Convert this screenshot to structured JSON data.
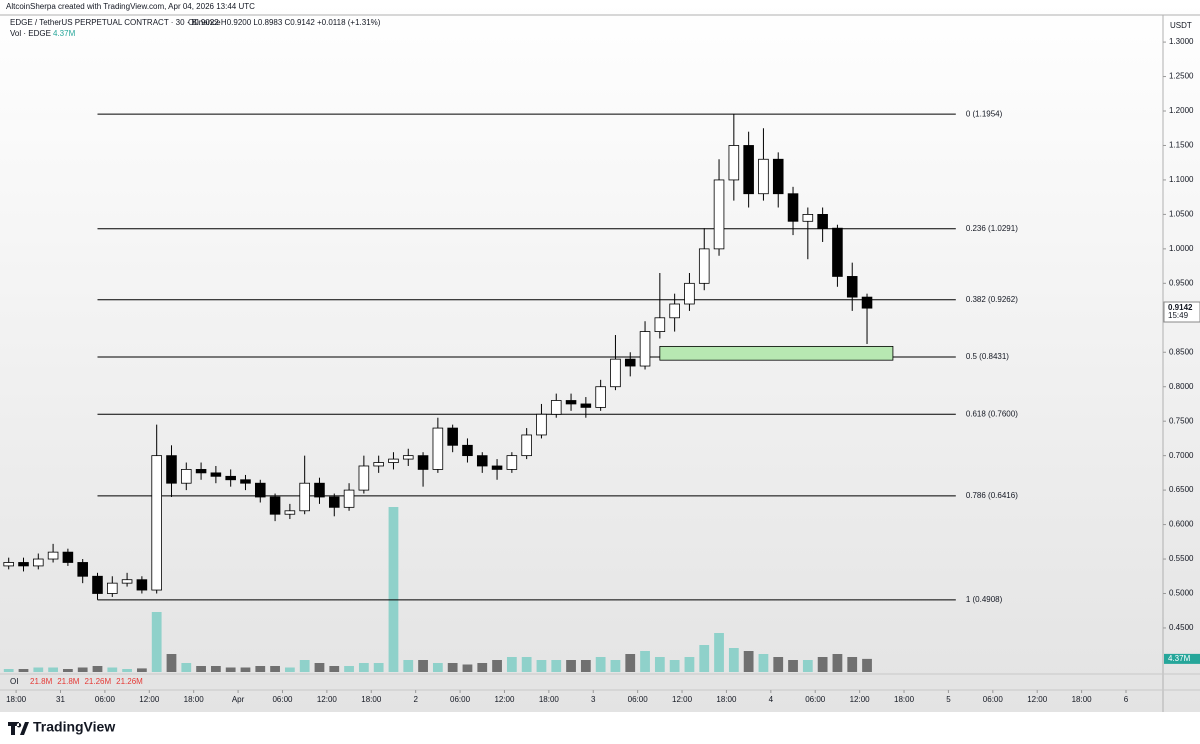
{
  "header": {
    "credit": "AltcoinSherpa created with TradingView.com, Apr 04, 2026 13:44 UTC",
    "brand": "TradingView"
  },
  "oi": {
    "label": "OI",
    "items": [
      "21.8M",
      "21.8M",
      "21.26M",
      "21.26M"
    ]
  },
  "chart_data": {
    "type": "candlestick",
    "title": "EDGE / TetherUS PERPETUAL CONTRACT · 30 · Binance",
    "ohlc_legend": "O0.9022 H0.9200 L0.8983 C0.9142 +0.0118 (+1.31%)",
    "volume_legend": "Vol · EDGE",
    "volume_last": "4.37M",
    "currency": "USDT",
    "last_price": {
      "value": 0.9142,
      "label": "0.9142"
    },
    "countdown": "15:49",
    "up_color": "#ffffff",
    "down_color": "#000000",
    "wick_color": "#000000",
    "volume_up_color": "#8fd1ca",
    "volume_down_color": "#707070",
    "x": [
      -1,
      1,
      3,
      5,
      7,
      9,
      11,
      13,
      15,
      17,
      19,
      21,
      23,
      25,
      27,
      29,
      31,
      33,
      35,
      37,
      39,
      41,
      43,
      45,
      47,
      49,
      51,
      53,
      55,
      57,
      59,
      61,
      63,
      65,
      67,
      69,
      71,
      73,
      75,
      77,
      79,
      81,
      83,
      85,
      87,
      89,
      91,
      93,
      95,
      97,
      99,
      101,
      103,
      105,
      107,
      109,
      111,
      113,
      115
    ],
    "open": [
      0.54,
      0.545,
      0.54,
      0.55,
      0.56,
      0.545,
      0.525,
      0.5,
      0.515,
      0.52,
      0.505,
      0.7,
      0.66,
      0.68,
      0.675,
      0.67,
      0.665,
      0.66,
      0.64,
      0.615,
      0.62,
      0.66,
      0.64,
      0.625,
      0.65,
      0.685,
      0.69,
      0.695,
      0.7,
      0.68,
      0.74,
      0.715,
      0.7,
      0.685,
      0.68,
      0.7,
      0.73,
      0.76,
      0.78,
      0.775,
      0.77,
      0.8,
      0.84,
      0.83,
      0.88,
      0.9,
      0.92,
      0.95,
      1.0,
      1.1,
      1.15,
      1.08,
      1.13,
      1.08,
      1.04,
      1.05,
      1.03,
      0.96,
      0.93
    ],
    "high": [
      0.552,
      0.552,
      0.558,
      0.572,
      0.565,
      0.55,
      0.53,
      0.525,
      0.53,
      0.525,
      0.745,
      0.715,
      0.69,
      0.69,
      0.685,
      0.68,
      0.672,
      0.665,
      0.645,
      0.63,
      0.7,
      0.668,
      0.645,
      0.66,
      0.7,
      0.7,
      0.705,
      0.71,
      0.705,
      0.755,
      0.745,
      0.725,
      0.705,
      0.695,
      0.705,
      0.74,
      0.775,
      0.79,
      0.79,
      0.785,
      0.81,
      0.875,
      0.85,
      0.895,
      0.965,
      0.935,
      0.965,
      1.03,
      1.13,
      1.1954,
      1.17,
      1.175,
      1.14,
      1.09,
      1.06,
      1.06,
      1.035,
      0.98,
      0.935
    ],
    "low": [
      0.535,
      0.532,
      0.535,
      0.545,
      0.54,
      0.515,
      0.491,
      0.495,
      0.51,
      0.5,
      0.5,
      0.64,
      0.65,
      0.665,
      0.66,
      0.655,
      0.65,
      0.632,
      0.605,
      0.608,
      0.615,
      0.63,
      0.612,
      0.62,
      0.645,
      0.675,
      0.68,
      0.685,
      0.655,
      0.675,
      0.705,
      0.69,
      0.675,
      0.665,
      0.675,
      0.695,
      0.725,
      0.755,
      0.765,
      0.755,
      0.765,
      0.795,
      0.815,
      0.825,
      0.87,
      0.88,
      0.91,
      0.94,
      0.99,
      1.07,
      1.06,
      1.07,
      1.06,
      1.02,
      0.985,
      1.01,
      0.945,
      0.91,
      0.862
    ],
    "close": [
      0.545,
      0.54,
      0.55,
      0.56,
      0.545,
      0.525,
      0.5,
      0.515,
      0.52,
      0.505,
      0.7,
      0.66,
      0.68,
      0.675,
      0.67,
      0.665,
      0.66,
      0.64,
      0.615,
      0.62,
      0.66,
      0.64,
      0.625,
      0.65,
      0.685,
      0.69,
      0.695,
      0.7,
      0.68,
      0.74,
      0.715,
      0.7,
      0.685,
      0.68,
      0.7,
      0.73,
      0.76,
      0.78,
      0.775,
      0.77,
      0.8,
      0.84,
      0.83,
      0.88,
      0.9,
      0.92,
      0.95,
      1.0,
      1.1,
      1.15,
      1.08,
      1.13,
      1.08,
      1.04,
      1.05,
      1.03,
      0.96,
      0.93,
      0.914
    ],
    "volume": [
      1,
      1,
      1.5,
      1.5,
      1,
      1.5,
      2,
      1.5,
      1,
      1.2,
      20,
      6,
      3,
      2,
      2,
      1.5,
      1.5,
      2,
      2,
      1.5,
      4,
      3,
      2,
      2,
      3,
      3,
      55,
      4,
      4,
      3,
      3,
      2.5,
      3,
      4,
      5,
      5,
      4,
      4,
      4,
      4,
      5,
      4,
      6,
      7,
      5,
      4,
      5,
      9,
      13,
      8,
      7,
      6,
      5,
      4,
      4,
      5,
      6,
      5,
      4.37
    ],
    "volume_ylim": [
      0,
      219
    ],
    "fib_levels": [
      {
        "label": "0 (1.1954)",
        "price": 1.1954
      },
      {
        "label": "0.236 (1.0291)",
        "price": 1.0291
      },
      {
        "label": "0.382 (0.9262)",
        "price": 0.9262
      },
      {
        "label": "0.5 (0.8431)",
        "price": 0.8431
      },
      {
        "label": "0.618 (0.7600)",
        "price": 0.76
      },
      {
        "label": "0.786 (0.6416)",
        "price": 0.6416
      },
      {
        "label": "1 (0.4908)",
        "price": 0.4908
      }
    ],
    "fib_start_x": 11,
    "fib_end_x": 127,
    "zone": {
      "top": 0.8585,
      "bottom": 0.8385,
      "x_start": 87,
      "x_end": 118.5,
      "color": "#b7e8b2"
    },
    "xlim": [
      -1.5,
      155
    ],
    "ylim": [
      0.3861,
      1.3393
    ],
    "yticks": [
      {
        "value": 0.45,
        "label": "0.4500"
      },
      {
        "value": 0.5,
        "label": "0.5000"
      },
      {
        "value": 0.55,
        "label": "0.5500"
      },
      {
        "value": 0.6,
        "label": "0.6000"
      },
      {
        "value": 0.65,
        "label": "0.6500"
      },
      {
        "value": 0.7,
        "label": "0.7000"
      },
      {
        "value": 0.75,
        "label": "0.7500"
      },
      {
        "value": 0.8,
        "label": "0.8000"
      },
      {
        "value": 0.85,
        "label": "0.8500"
      },
      {
        "value": 0.95,
        "label": "0.9500"
      },
      {
        "value": 1.0,
        "label": "1.0000"
      },
      {
        "value": 1.05,
        "label": "1.0500"
      },
      {
        "value": 1.1,
        "label": "1.1000"
      },
      {
        "value": 1.15,
        "label": "1.1500"
      },
      {
        "value": 1.2,
        "label": "1.2000"
      },
      {
        "value": 1.25,
        "label": "1.2500"
      },
      {
        "value": 1.3,
        "label": "1.3000"
      }
    ],
    "xticks": [
      {
        "value": 0,
        "label": "18:00"
      },
      {
        "value": 6,
        "label": "31"
      },
      {
        "value": 12,
        "label": "06:00"
      },
      {
        "value": 18,
        "label": "12:00"
      },
      {
        "value": 24,
        "label": "18:00"
      },
      {
        "value": 30,
        "label": "Apr"
      },
      {
        "value": 36,
        "label": "06:00"
      },
      {
        "value": 42,
        "label": "12:00"
      },
      {
        "value": 48,
        "label": "18:00"
      },
      {
        "value": 54,
        "label": "2"
      },
      {
        "value": 60,
        "label": "06:00"
      },
      {
        "value": 66,
        "label": "12:00"
      },
      {
        "value": 72,
        "label": "18:00"
      },
      {
        "value": 78,
        "label": "3"
      },
      {
        "value": 84,
        "label": "06:00"
      },
      {
        "value": 90,
        "label": "12:00"
      },
      {
        "value": 96,
        "label": "18:00"
      },
      {
        "value": 102,
        "label": "4"
      },
      {
        "value": 108,
        "label": "06:00"
      },
      {
        "value": 114,
        "label": "12:00"
      },
      {
        "value": 120,
        "label": "18:00"
      },
      {
        "value": 126,
        "label": "5"
      },
      {
        "value": 132,
        "label": "06:00"
      },
      {
        "value": 138,
        "label": "12:00"
      },
      {
        "value": 144,
        "label": "18:00"
      },
      {
        "value": 150,
        "label": "6"
      }
    ]
  }
}
